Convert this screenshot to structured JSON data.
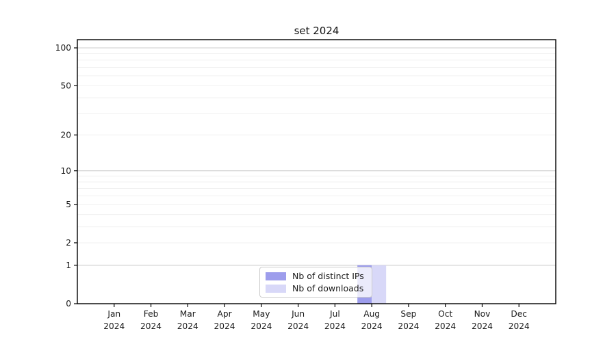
{
  "chart_data": {
    "type": "bar",
    "title": "set 2024",
    "categories": [
      "Jan",
      "Feb",
      "Mar",
      "Apr",
      "May",
      "Jun",
      "Jul",
      "Aug",
      "Sep",
      "Oct",
      "Nov",
      "Dec"
    ],
    "category_year": "2024",
    "series": [
      {
        "name": "Nb of distinct IPs",
        "color": "#9d9dec",
        "values": [
          0,
          0,
          0,
          0,
          0,
          0,
          0,
          1,
          0,
          0,
          0,
          0
        ]
      },
      {
        "name": "Nb of downloads",
        "color": "#d8d8f8",
        "values": [
          0,
          0,
          0,
          0,
          0,
          0,
          0,
          1,
          0,
          0,
          0,
          0
        ]
      }
    ],
    "y_scale": "log1p",
    "y_tick_labels": [
      "100",
      "50",
      "20",
      "10",
      "5",
      "2",
      "1",
      "0"
    ],
    "y_tick_values": [
      100,
      50,
      20,
      10,
      5,
      2,
      1,
      0
    ],
    "y_minor_gridline_values": [
      2,
      3,
      4,
      5,
      6,
      7,
      8,
      9,
      20,
      30,
      40,
      50,
      60,
      70,
      80,
      90
    ],
    "y_major_gridline_values": [
      1,
      10,
      100
    ],
    "ylim": [
      0,
      116
    ],
    "grid": true,
    "legend_position": "bottom-center",
    "colors": {
      "axis": "#000000",
      "grid_minor": "#f0f0f0",
      "grid_major": "#cdcdcd",
      "text": "#1a1a1a"
    }
  }
}
